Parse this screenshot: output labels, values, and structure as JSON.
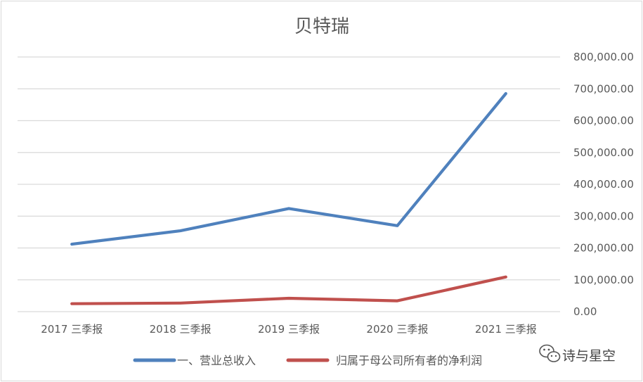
{
  "chart_data": {
    "type": "line",
    "title": "贝特瑞",
    "categories": [
      "2017 三季报",
      "2018 三季报",
      "2019 三季报",
      "2020 三季报",
      "2021 三季报"
    ],
    "ylim": [
      0,
      800000
    ],
    "yticks": [
      "0.00",
      "100,000.00",
      "200,000.00",
      "300,000.00",
      "400,000.00",
      "500,000.00",
      "600,000.00",
      "700,000.00",
      "800,000.00"
    ],
    "y_axis_side": "right",
    "grid": true,
    "legend_position": "bottom",
    "series": [
      {
        "name": "一、营业总收入",
        "color": "#4f81bd",
        "values": [
          212000,
          254000,
          324000,
          270000,
          685000
        ]
      },
      {
        "name": "归属于母公司所有者的净利润",
        "color": "#c0504d",
        "values": [
          25000,
          27000,
          42000,
          34000,
          109000
        ]
      }
    ]
  },
  "watermark": {
    "text": "诗与星空",
    "icon": "wechat-icon"
  }
}
